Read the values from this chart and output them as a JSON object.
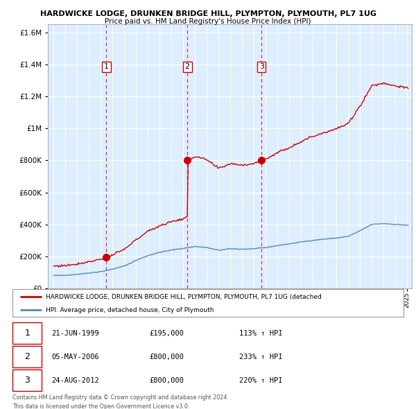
{
  "title1": "HARDWICKE LODGE, DRUNKEN BRIDGE HILL, PLYMPTON, PLYMOUTH, PL7 1UG",
  "title2": "Price paid vs. HM Land Registry's House Price Index (HPI)",
  "sale_dates_num": [
    1999.47,
    2006.34,
    2012.64
  ],
  "sale_prices": [
    195000,
    800000,
    800000
  ],
  "sale_labels": [
    "1",
    "2",
    "3"
  ],
  "legend_line1": "HARDWICKE LODGE, DRUNKEN BRIDGE HILL, PLYMPTON, PLYMOUTH, PL7 1UG (detached",
  "legend_line2": "HPI: Average price, detached house, City of Plymouth",
  "table_data": [
    [
      "1",
      "21-JUN-1999",
      "£195,000",
      "113% ↑ HPI"
    ],
    [
      "2",
      "05-MAY-2006",
      "£800,000",
      "233% ↑ HPI"
    ],
    [
      "3",
      "24-AUG-2012",
      "£800,000",
      "220% ↑ HPI"
    ]
  ],
  "footnote1": "Contains HM Land Registry data © Crown copyright and database right 2024.",
  "footnote2": "This data is licensed under the Open Government Licence v3.0.",
  "red_color": "#cc0000",
  "blue_color": "#5588bb",
  "chart_bg": "#ddeeff",
  "ylim": [
    0,
    1650000
  ],
  "xlim_left": 1994.5,
  "xlim_right": 2025.4
}
